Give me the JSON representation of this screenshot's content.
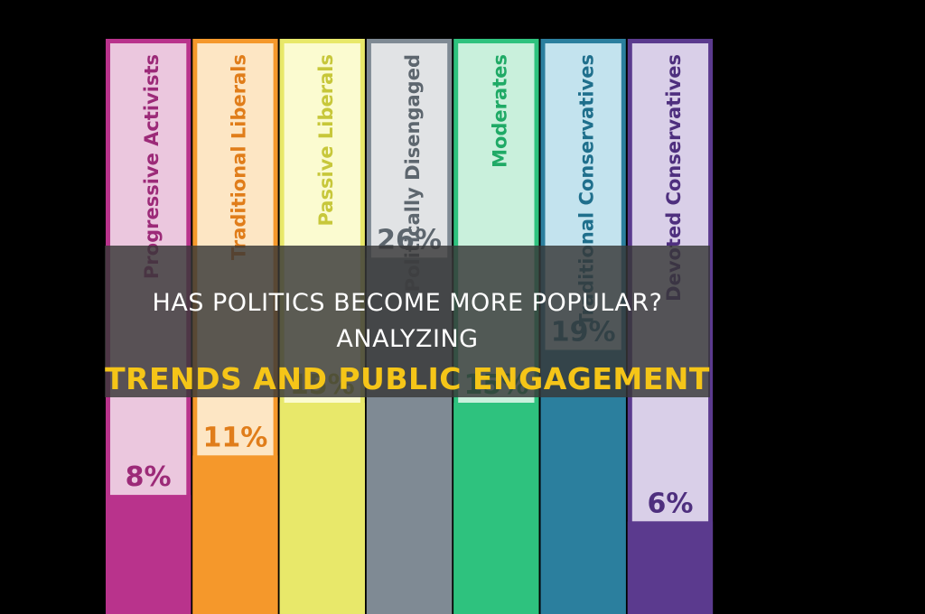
{
  "headline": {
    "line1": "HAS POLITICS BECOME MORE POPULAR? ANALYZING",
    "line2": "TRENDS AND PUBLIC ENGAGEMENT"
  },
  "colors": {
    "headline_accent": "#f5c518",
    "banner": "#373737"
  },
  "chart_data": {
    "type": "bar",
    "title": "",
    "ylim": [
      0,
      30
    ],
    "categories": [
      "Progressive Activists",
      "Traditional Liberals",
      "Passive Liberals",
      "Politically Disengaged",
      "Moderates",
      "Traditional Conservatives",
      "Devoted Conservatives"
    ],
    "values": [
      8,
      11,
      15,
      26,
      15,
      19,
      6
    ],
    "value_labels": [
      "8%",
      "11%",
      "15%",
      "26%",
      "15%",
      "19%",
      "6%"
    ],
    "bar_colors": [
      "#b9338c",
      "#f5982b",
      "#e8e86a",
      "#7f8a94",
      "#2ec27e",
      "#2b7f9e",
      "#5b3a8e"
    ],
    "label_colors": [
      "#9c2a78",
      "#e07d1a",
      "#c7c73a",
      "#5d666e",
      "#1faa66",
      "#1f6f8c",
      "#4e2f7e"
    ],
    "card_colors": [
      "#ebc7de",
      "#fde6c4",
      "#fbfbd0",
      "#e1e3e5",
      "#c9f0dc",
      "#c3e3ee",
      "#d9cfe8"
    ]
  }
}
